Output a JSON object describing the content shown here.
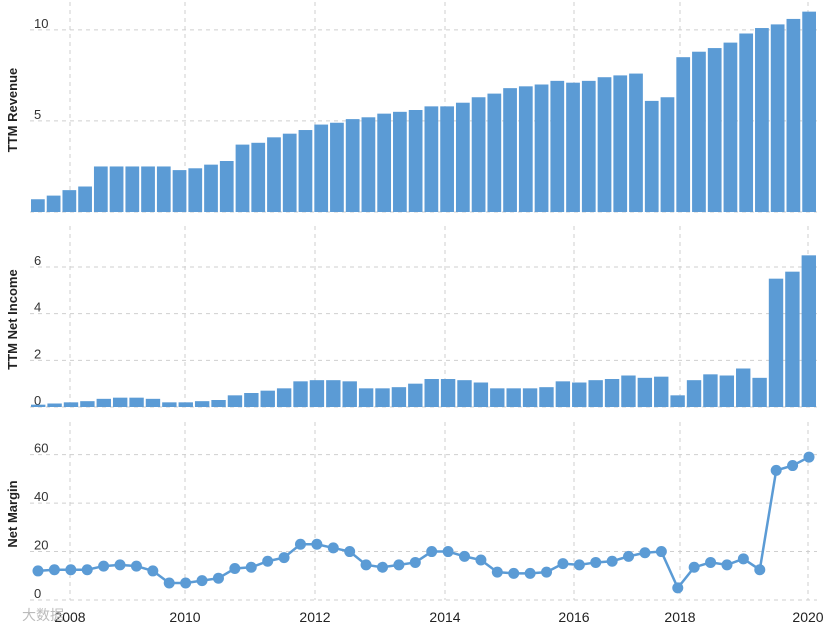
{
  "colors": {
    "bar": "#5b9bd5",
    "line": "#5b9bd5",
    "grid": "#cfcfcf"
  },
  "x_ticks": [
    "2008",
    "2010",
    "2012",
    "2014",
    "2016",
    "2018",
    "2020"
  ],
  "watermark": "大数据",
  "chart_data": [
    {
      "type": "bar",
      "ylabel": "TTM Revenue",
      "ylim": [
        0,
        11.2
      ],
      "yticks": [
        0,
        5,
        10
      ],
      "grid": true,
      "values": [
        0.7,
        0.9,
        1.2,
        1.4,
        2.5,
        2.5,
        2.5,
        2.5,
        2.5,
        2.3,
        2.4,
        2.6,
        2.8,
        3.7,
        3.8,
        4.1,
        4.3,
        4.5,
        4.8,
        4.9,
        5.1,
        5.2,
        5.4,
        5.5,
        5.6,
        5.8,
        5.8,
        6.0,
        6.3,
        6.5,
        6.8,
        6.9,
        7.0,
        7.2,
        7.1,
        7.2,
        7.4,
        7.5,
        7.6,
        6.1,
        6.3,
        8.5,
        8.8,
        9.0,
        9.3,
        9.8,
        10.1,
        10.3,
        10.6,
        11.0
      ]
    },
    {
      "type": "bar",
      "ylabel": "TTM Net Income",
      "ylim": [
        0,
        7.5
      ],
      "yticks": [
        0,
        2,
        4,
        6
      ],
      "grid": true,
      "values": [
        0.1,
        0.15,
        0.2,
        0.25,
        0.35,
        0.4,
        0.4,
        0.35,
        0.2,
        0.2,
        0.25,
        0.3,
        0.5,
        0.6,
        0.7,
        0.8,
        1.1,
        1.15,
        1.15,
        1.1,
        0.8,
        0.8,
        0.85,
        1.0,
        1.2,
        1.2,
        1.15,
        1.05,
        0.8,
        0.8,
        0.8,
        0.85,
        1.1,
        1.05,
        1.15,
        1.2,
        1.35,
        1.25,
        1.3,
        0.5,
        1.15,
        1.4,
        1.35,
        1.65,
        1.25,
        5.5,
        5.8,
        6.5
      ]
    },
    {
      "type": "line",
      "ylabel": "Net Margin",
      "ylim": [
        0,
        71
      ],
      "yticks": [
        0,
        20,
        40,
        60
      ],
      "grid": true,
      "values": [
        12,
        12.5,
        12.5,
        12.5,
        14,
        14.5,
        14,
        12,
        7,
        7,
        8,
        9,
        13,
        13.5,
        16,
        17.5,
        23,
        23,
        21.5,
        20,
        14.5,
        13.5,
        14.5,
        15.5,
        20,
        20,
        18,
        16.5,
        11.5,
        11,
        11,
        11.5,
        15,
        14.5,
        15.5,
        16,
        18,
        19.5,
        20,
        5,
        13.5,
        15.5,
        14.5,
        17,
        12.5,
        53.5,
        55.5,
        59
      ]
    }
  ]
}
